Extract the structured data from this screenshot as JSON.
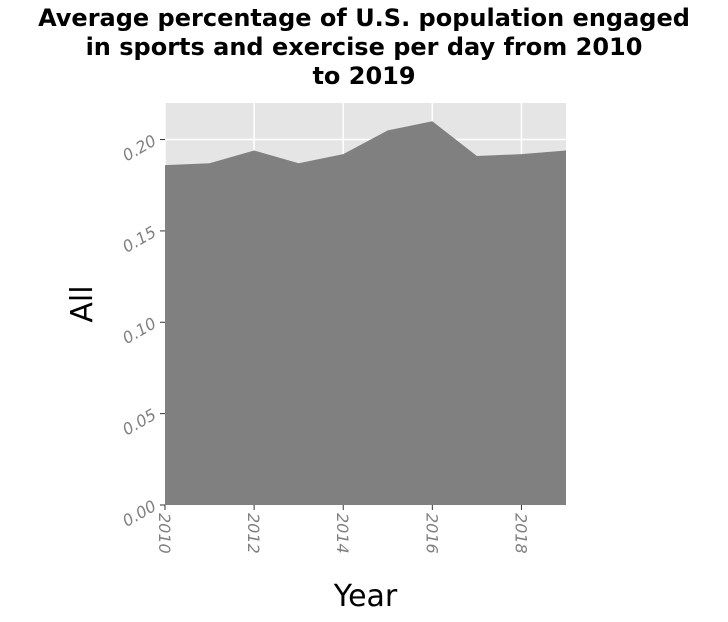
{
  "chart_data": {
    "type": "area",
    "title_lines": [
      "Average percentage of U.S. population engaged",
      "in sports and exercise per day from 2010",
      "to 2019"
    ],
    "xlabel": "Year",
    "ylabel": "All",
    "x": [
      2010,
      2011,
      2012,
      2013,
      2014,
      2015,
      2016,
      2017,
      2018,
      2019
    ],
    "series": [
      {
        "values": [
          0.186,
          0.187,
          0.194,
          0.187,
          0.192,
          0.205,
          0.21,
          0.191,
          0.192,
          0.194
        ]
      }
    ],
    "xlim": [
      2010,
      2019
    ],
    "ylim": [
      0,
      0.22
    ],
    "xticks": [
      2010,
      2012,
      2014,
      2016,
      2018
    ],
    "xtick_labels": [
      "2010",
      "2012",
      "2014",
      "2016",
      "2018"
    ],
    "yticks": [
      0,
      0.05,
      0.1,
      0.15,
      0.2
    ],
    "ytick_labels": [
      "0.00",
      "0.05",
      "0.10",
      "0.15",
      "0.20"
    ],
    "grid": true,
    "legend": "none",
    "colors": {
      "area": "#808080",
      "panel": "#e5e5e5",
      "grid": "#ffffff",
      "tick_text": "#808080"
    }
  }
}
